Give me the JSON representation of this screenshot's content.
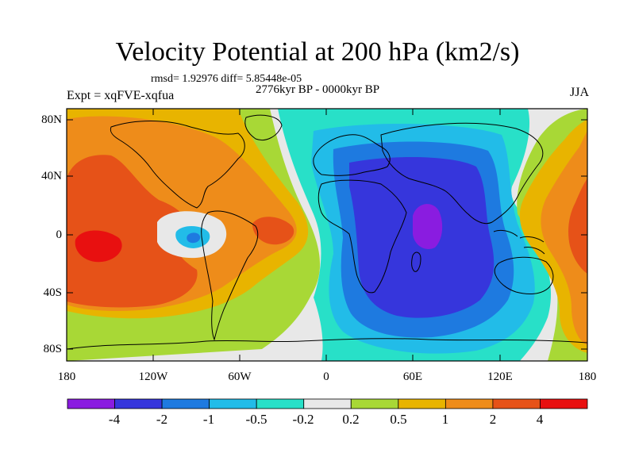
{
  "title": "Velocity Potential at 200 hPa (km2/s)",
  "stats": "rmsd= 1.92976 diff= 5.85448e-05",
  "period": "2776kyr BP - 0000kyr BP",
  "experiment": "Expt = xqFVE-xqfua",
  "season": "JJA",
  "lat_labels": [
    "80N",
    "40N",
    "0",
    "40S",
    "80S"
  ],
  "lon_labels": [
    "180",
    "120W",
    "60W",
    "0",
    "60E",
    "120E",
    "180"
  ],
  "colorbar": {
    "colors": [
      "#8a1ce0",
      "#3636dc",
      "#1e7ae0",
      "#22bce8",
      "#28e0c8",
      "#e8e8e8",
      "#a8d836",
      "#e8b400",
      "#ee8c1a",
      "#e65218",
      "#e81010"
    ],
    "labels": [
      "-4",
      "-2",
      "-1",
      "-0.5",
      "-0.2",
      "0.2",
      "0.5",
      "1",
      "2",
      "4"
    ]
  }
}
